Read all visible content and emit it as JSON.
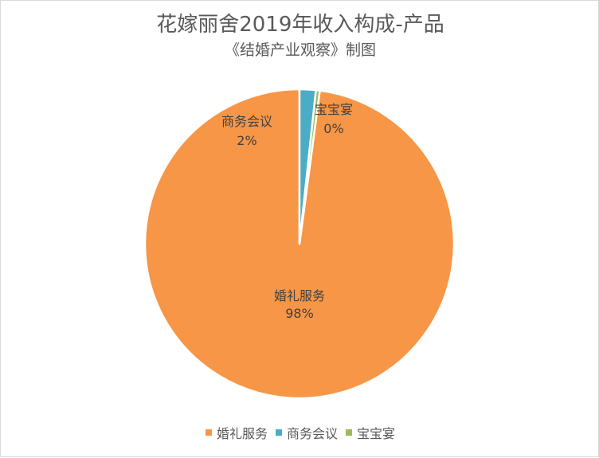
{
  "chart_data": {
    "type": "pie",
    "title": "花嫁丽舍2019年收入构成-产品",
    "subtitle": "《结婚产业观察》制图",
    "categories": [
      "婚礼服务",
      "商务会议",
      "宝宝宴"
    ],
    "values": [
      97.9,
      1.7,
      0.4
    ],
    "data_labels": [
      "98%",
      "2%",
      "0%"
    ],
    "colors": [
      "#F79646",
      "#4BACC6",
      "#9BBB59"
    ],
    "legend_position": "bottom"
  }
}
